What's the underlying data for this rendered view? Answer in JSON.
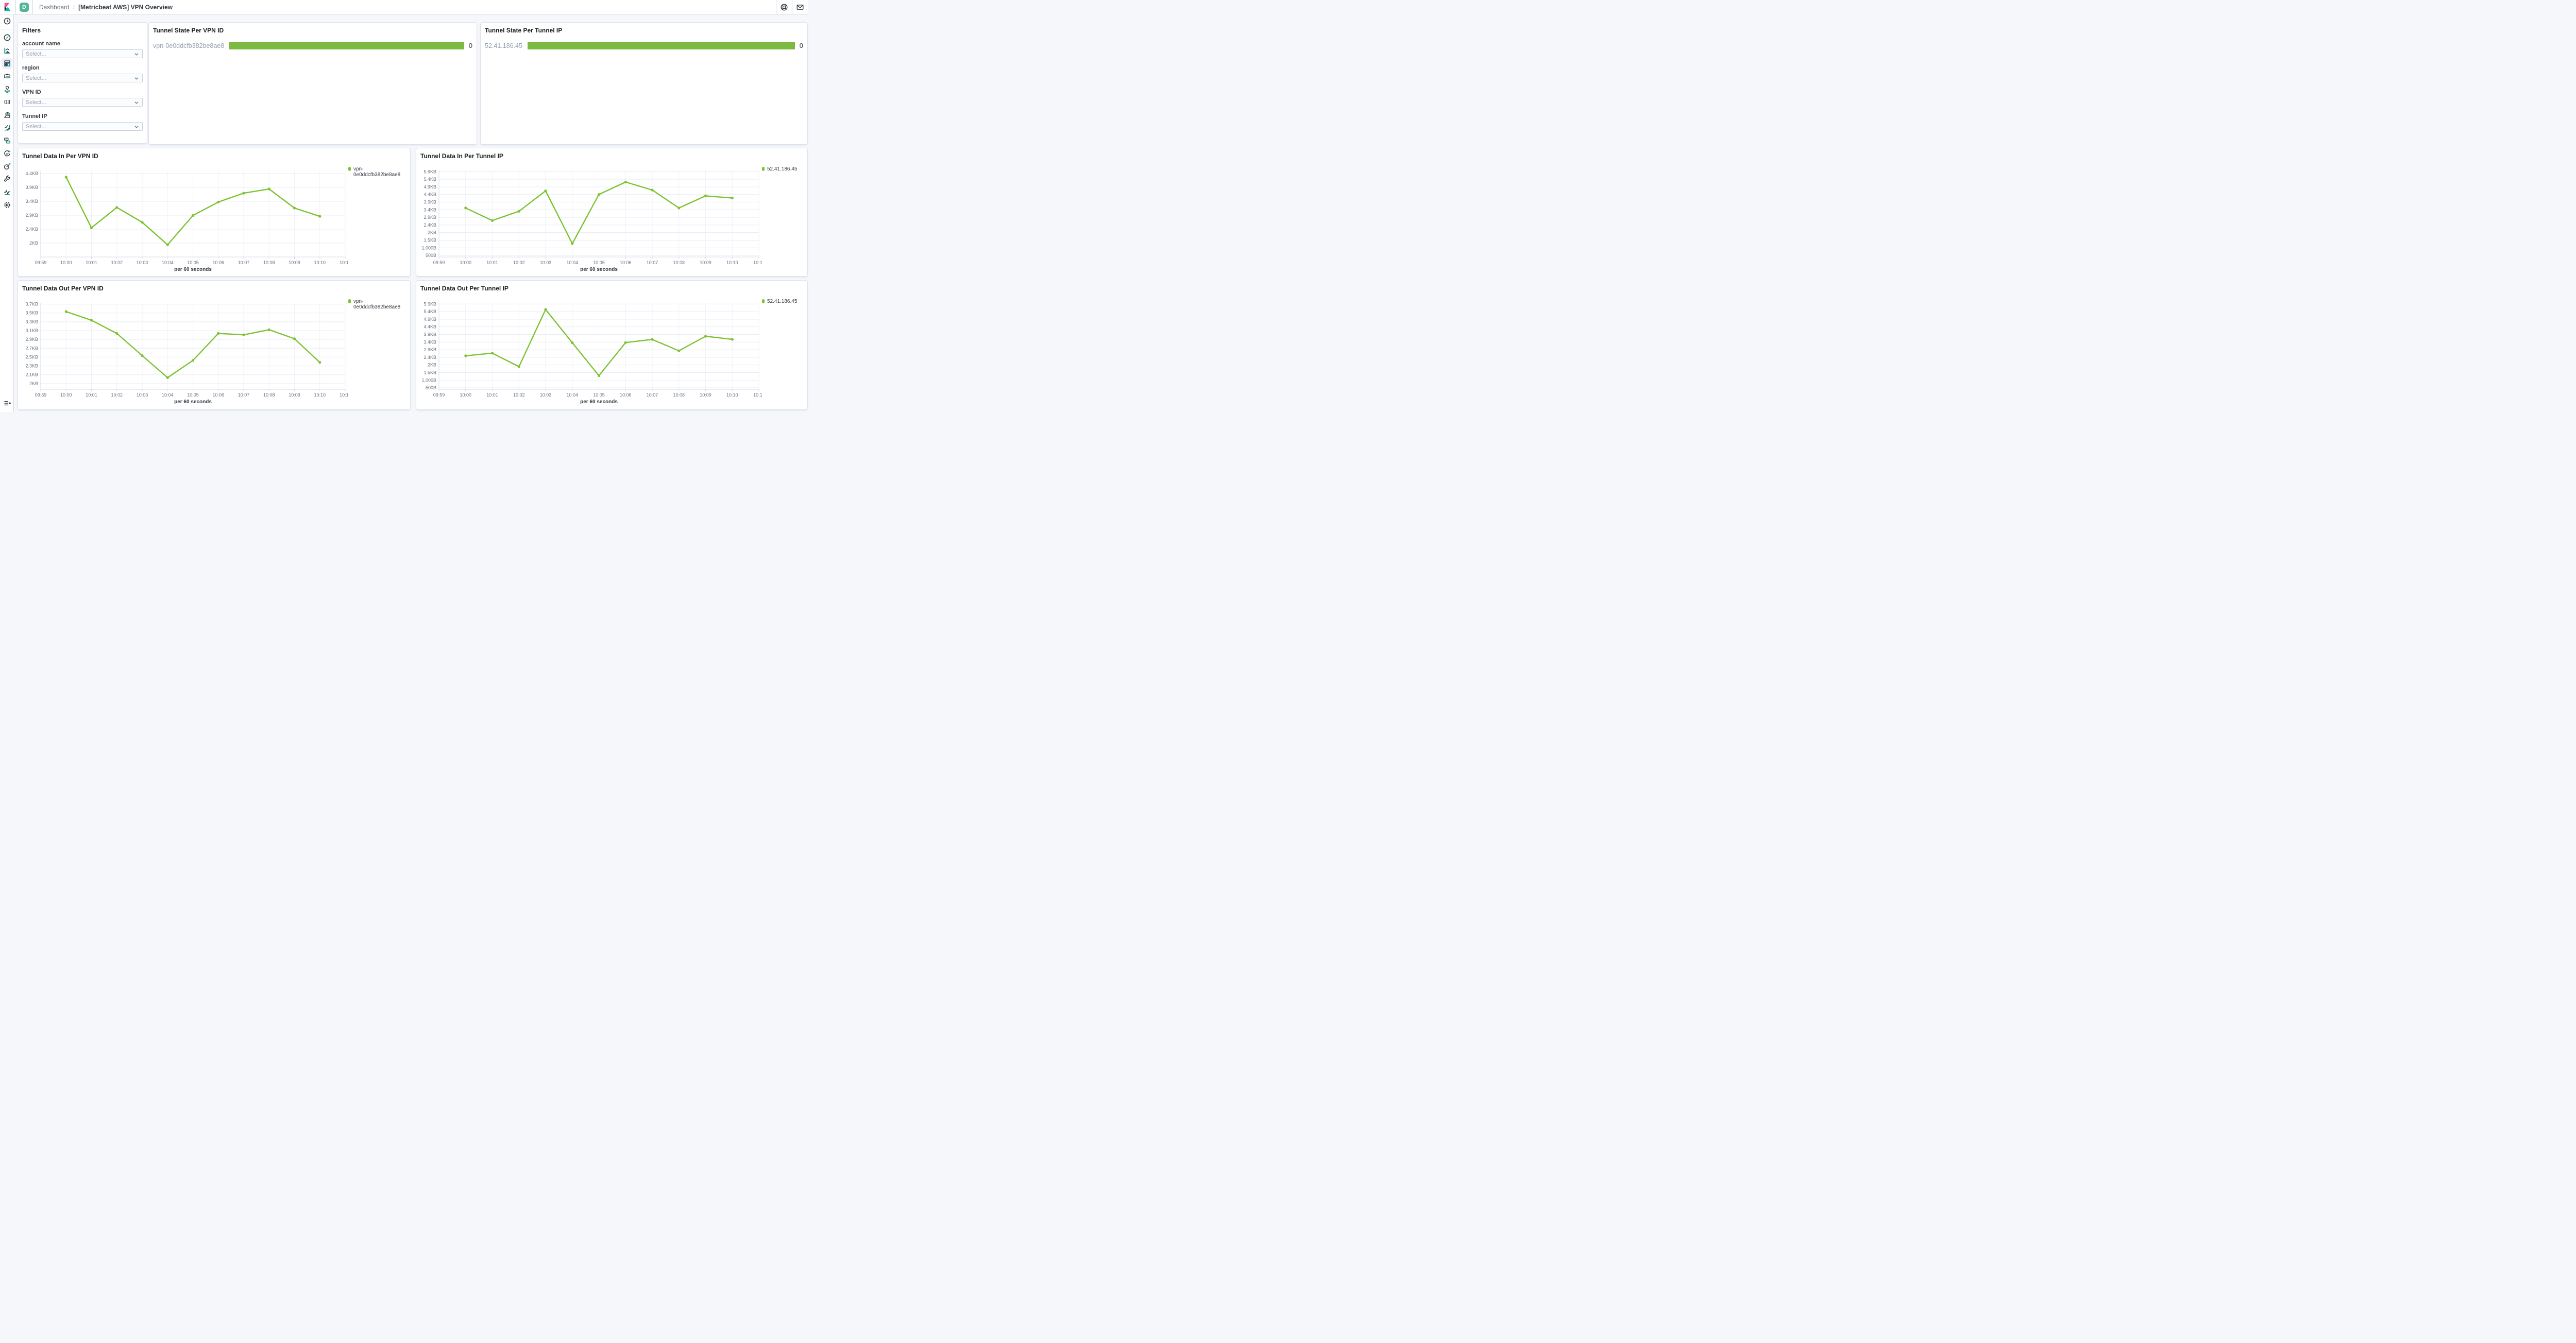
{
  "header": {
    "space_initial": "D",
    "breadcrumb_section": "Dashboard",
    "breadcrumb_separator": "/",
    "page_title": "[Metricbeat AWS] VPN Overview"
  },
  "sidebar": {
    "active_item": "dashboard",
    "items": [
      "recently-viewed",
      "discover",
      "visualize",
      "dashboard",
      "canvas",
      "maps",
      "machine-learning",
      "metrics",
      "logs",
      "apm",
      "uptime",
      "siem",
      "dev-tools",
      "monitoring",
      "management"
    ]
  },
  "filters": {
    "title": "Filters",
    "groups": [
      {
        "label": "account name",
        "placeholder": "Select..."
      },
      {
        "label": "region",
        "placeholder": "Select..."
      },
      {
        "label": "VPN ID",
        "placeholder": "Select..."
      },
      {
        "label": "Tunnel IP",
        "placeholder": "Select..."
      }
    ]
  },
  "state_panels": [
    {
      "title": "Tunnel State Per VPN ID",
      "label": "vpn-0e0ddcfb382be8ae8",
      "value": "0",
      "bar_color": "#7cb940"
    },
    {
      "title": "Tunnel State Per Tunnel IP",
      "label": "52.41.186.45",
      "value": "0",
      "bar_color": "#7cb940"
    }
  ],
  "chart_data": [
    {
      "type": "line",
      "title": "Tunnel Data In Per VPN ID",
      "xlabel": "per 60 seconds",
      "legend": [
        {
          "label": "vpn-0e0ddcfb382be8ae8",
          "color": "#7dc230"
        }
      ],
      "legend_position": "right",
      "grid": true,
      "x_ticks": [
        "09:59",
        "10:00",
        "10:01",
        "10:02",
        "10:03",
        "10:04",
        "10:05",
        "10:06",
        "10:07",
        "10:08",
        "10:09",
        "10:10",
        "10:11"
      ],
      "y_ticks": [
        {
          "value": 2000,
          "label": "2KB"
        },
        {
          "value": 2500,
          "label": "2.4KB"
        },
        {
          "value": 3000,
          "label": "2.9KB"
        },
        {
          "value": 3500,
          "label": "3.4KB"
        },
        {
          "value": 4000,
          "label": "3.9KB"
        },
        {
          "value": 4500,
          "label": "4.4KB"
        }
      ],
      "ylim_bytes": [
        1500,
        4610
      ],
      "series": [
        {
          "name": "vpn-0e0ddcfb382be8ae8",
          "x": [
            "10:00",
            "10:01",
            "10:02",
            "10:03",
            "10:04",
            "10:05",
            "10:06",
            "10:07",
            "10:08",
            "10:09",
            "10:10"
          ],
          "values_bytes": [
            4370,
            2550,
            3280,
            2746,
            1938,
            2990,
            3476,
            3793,
            3943,
            3258,
            2958
          ]
        }
      ]
    },
    {
      "type": "line",
      "title": "Tunnel Data In Per Tunnel IP",
      "xlabel": "per 60 seconds",
      "legend": [
        {
          "label": "52.41.186.45",
          "color": "#7dc230"
        }
      ],
      "legend_position": "right",
      "grid": true,
      "x_ticks": [
        "09:59",
        "10:00",
        "10:01",
        "10:02",
        "10:03",
        "10:04",
        "10:05",
        "10:06",
        "10:07",
        "10:08",
        "10:09",
        "10:10",
        "10:11"
      ],
      "y_ticks": [
        {
          "value": 500,
          "label": "500B"
        },
        {
          "value": 1000,
          "label": "1,000B"
        },
        {
          "value": 1500,
          "label": "1.5KB"
        },
        {
          "value": 2000,
          "label": "2KB"
        },
        {
          "value": 2500,
          "label": "2.4KB"
        },
        {
          "value": 3000,
          "label": "2.9KB"
        },
        {
          "value": 3500,
          "label": "3.4KB"
        },
        {
          "value": 4000,
          "label": "3.9KB"
        },
        {
          "value": 4500,
          "label": "4.4KB"
        },
        {
          "value": 5000,
          "label": "4.9KB"
        },
        {
          "value": 5500,
          "label": "5.4KB"
        },
        {
          "value": 6000,
          "label": "5.9KB"
        }
      ],
      "ylim_bytes": [
        400,
        6080
      ],
      "series": [
        {
          "name": "52.41.186.45",
          "x": [
            "10:00",
            "10:01",
            "10:02",
            "10:03",
            "10:04",
            "10:05",
            "10:06",
            "10:07",
            "10:08",
            "10:09",
            "10:10"
          ],
          "values_bytes": [
            3615,
            2790,
            3400,
            4740,
            1280,
            4505,
            5320,
            4795,
            3615,
            4410,
            4270
          ]
        }
      ]
    },
    {
      "type": "line",
      "title": "Tunnel Data Out Per VPN ID",
      "xlabel": "per 60 seconds",
      "legend": [
        {
          "label": "vpn-0e0ddcfb382be8ae8",
          "color": "#7dc230"
        }
      ],
      "legend_position": "right",
      "grid": true,
      "x_ticks": [
        "09:59",
        "10:00",
        "10:01",
        "10:02",
        "10:03",
        "10:04",
        "10:05",
        "10:06",
        "10:07",
        "10:08",
        "10:09",
        "10:10",
        "10:11"
      ],
      "y_ticks": [
        {
          "value": 2000,
          "label": "2KB"
        },
        {
          "value": 2200,
          "label": "2.1KB"
        },
        {
          "value": 2400,
          "label": "2.3KB"
        },
        {
          "value": 2600,
          "label": "2.5KB"
        },
        {
          "value": 2800,
          "label": "2.7KB"
        },
        {
          "value": 3000,
          "label": "2.9KB"
        },
        {
          "value": 3200,
          "label": "3.1KB"
        },
        {
          "value": 3400,
          "label": "3.3KB"
        },
        {
          "value": 3600,
          "label": "3.5KB"
        },
        {
          "value": 3800,
          "label": "3.7KB"
        }
      ],
      "ylim_bytes": [
        1870,
        3830
      ],
      "series": [
        {
          "name": "vpn-0e0ddcfb382be8ae8",
          "x": [
            "10:00",
            "10:01",
            "10:02",
            "10:03",
            "10:04",
            "10:05",
            "10:06",
            "10:07",
            "10:08",
            "10:09",
            "10:10"
          ],
          "values_bytes": [
            3630,
            3435,
            3136,
            2633,
            2134,
            2525,
            3136,
            3104,
            3220,
            3016,
            2480
          ]
        }
      ]
    },
    {
      "type": "line",
      "title": "Tunnel Data Out Per Tunnel IP",
      "xlabel": "per 60 seconds",
      "legend": [
        {
          "label": "52.41.186.45",
          "color": "#7dc230"
        }
      ],
      "legend_position": "right",
      "grid": true,
      "x_ticks": [
        "09:59",
        "10:00",
        "10:01",
        "10:02",
        "10:03",
        "10:04",
        "10:05",
        "10:06",
        "10:07",
        "10:08",
        "10:09",
        "10:10",
        "10:11"
      ],
      "y_ticks": [
        {
          "value": 500,
          "label": "500B"
        },
        {
          "value": 1000,
          "label": "1,000B"
        },
        {
          "value": 1500,
          "label": "1.5KB"
        },
        {
          "value": 2000,
          "label": "2KB"
        },
        {
          "value": 2500,
          "label": "2.4KB"
        },
        {
          "value": 3000,
          "label": "2.9KB"
        },
        {
          "value": 3500,
          "label": "3.4KB"
        },
        {
          "value": 4000,
          "label": "3.9KB"
        },
        {
          "value": 4500,
          "label": "4.4KB"
        },
        {
          "value": 5000,
          "label": "4.9KB"
        },
        {
          "value": 5500,
          "label": "5.4KB"
        },
        {
          "value": 6000,
          "label": "5.9KB"
        }
      ],
      "ylim_bytes": [
        400,
        6080
      ],
      "series": [
        {
          "name": "52.41.186.45",
          "x": [
            "10:00",
            "10:01",
            "10:02",
            "10:03",
            "10:04",
            "10:05",
            "10:06",
            "10:07",
            "10:08",
            "10:09",
            "10:10"
          ],
          "values_bytes": [
            2600,
            2773,
            1886,
            5640,
            3460,
            1295,
            3470,
            3673,
            2930,
            3883,
            3680
          ]
        }
      ]
    }
  ],
  "colors": {
    "line_green": "#7dc230",
    "bar_green": "#7cb940",
    "teal_accent": "#00bfb3",
    "text": "#343741",
    "muted_text": "#69707d",
    "placeholder_text": "#98a2b3",
    "border": "#d3dae6",
    "page_background": "#f5f7fa",
    "space_avatar": "#54b399",
    "logo_pink": "#f04e98"
  }
}
